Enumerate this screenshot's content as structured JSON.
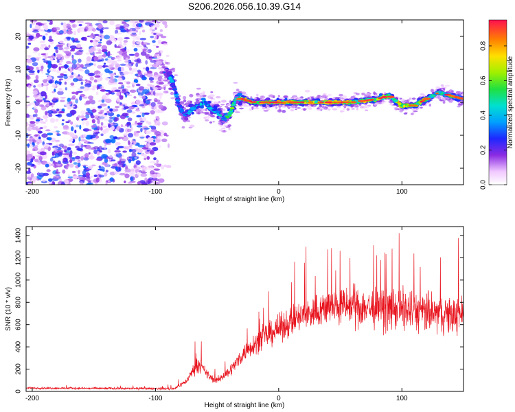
{
  "title": "S206.2026.056.10.39.G14",
  "chart_data": [
    {
      "type": "heatmap",
      "xlabel": "Height of straight line (km)",
      "ylabel": "Frequency (Hz)",
      "xlim": [
        -205,
        150
      ],
      "ylim": [
        -25,
        25
      ],
      "xticks": [
        -200,
        -100,
        0,
        100
      ],
      "yticks": [
        -20,
        -10,
        0,
        10,
        20
      ],
      "colorbar": {
        "label": "Normalized spectral amplitude",
        "range": [
          0,
          0.95
        ],
        "ticks": [
          0.0,
          0.2,
          0.4,
          0.6,
          0.8
        ]
      },
      "signal_trace": {
        "x": [
          -90,
          -85,
          -80,
          -75,
          -70,
          -60,
          -55,
          -50,
          -45,
          -40,
          -35,
          -30,
          -20,
          -10,
          0,
          20,
          40,
          60,
          80,
          90,
          100,
          110,
          120,
          130,
          140,
          150
        ],
        "y": [
          9,
          5,
          -2,
          -4,
          -2,
          0,
          -2,
          -3,
          -5,
          -4,
          1,
          1,
          0,
          0,
          0,
          0,
          0,
          0,
          1,
          2,
          -1,
          -1,
          1,
          3,
          2,
          1
        ],
        "amplitude": [
          0.5,
          0.4,
          0.35,
          0.4,
          0.45,
          0.5,
          0.45,
          0.5,
          0.55,
          0.6,
          0.7,
          0.75,
          0.8,
          0.85,
          0.9,
          0.9,
          0.85,
          0.8,
          0.75,
          0.7,
          0.85,
          0.7,
          0.65,
          0.6,
          0.55,
          0.5
        ]
      },
      "noise_region": {
        "x": [
          -205,
          -95
        ],
        "y": [
          -25,
          25
        ],
        "amplitude": [
          0.05,
          0.35
        ]
      }
    },
    {
      "type": "line",
      "xlabel": "Height of straight line (km)",
      "ylabel": "SNR (10 * v/v)",
      "xlim": [
        -205,
        150
      ],
      "ylim": [
        0,
        1480
      ],
      "xticks": [
        -200,
        -100,
        0,
        100
      ],
      "yticks": [
        0,
        200,
        400,
        600,
        800,
        1000,
        1200,
        1400
      ],
      "series": [
        {
          "name": "SNR",
          "color": "#e8141e",
          "x": [
            -205,
            -100,
            -85,
            -75,
            -70,
            -65,
            -60,
            -55,
            -50,
            -40,
            -35,
            -30,
            -25,
            -20,
            -10,
            0,
            10,
            20,
            30,
            40,
            50,
            60,
            70,
            80,
            90,
            100,
            110,
            120,
            130,
            140,
            150
          ],
          "y": [
            30,
            25,
            25,
            90,
            180,
            250,
            180,
            120,
            100,
            180,
            250,
            320,
            380,
            430,
            500,
            560,
            630,
            680,
            720,
            760,
            770,
            760,
            760,
            740,
            740,
            740,
            720,
            700,
            700,
            680,
            700
          ],
          "spread": [
            15,
            15,
            20,
            40,
            80,
            120,
            80,
            60,
            50,
            80,
            100,
            120,
            140,
            160,
            180,
            200,
            220,
            240,
            250,
            260,
            280,
            300,
            300,
            300,
            300,
            320,
            300,
            300,
            280,
            280,
            260
          ]
        }
      ]
    }
  ]
}
